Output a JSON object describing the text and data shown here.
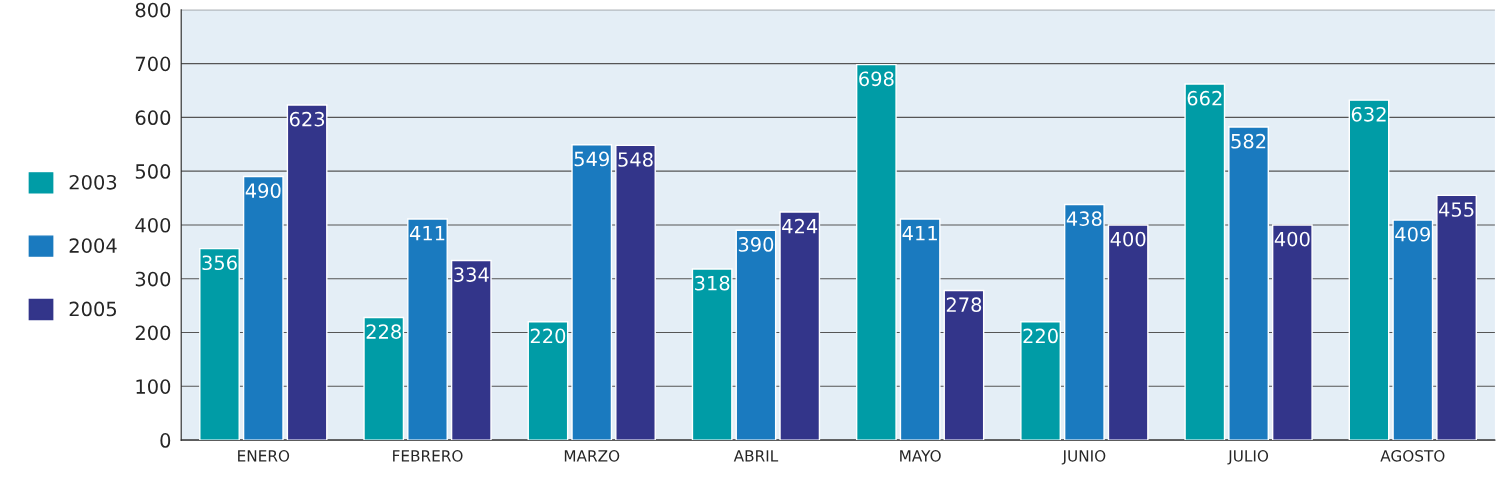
{
  "chart_data": {
    "type": "bar",
    "categories": [
      "ENERO",
      "FEBRERO",
      "MARZO",
      "ABRIL",
      "MAYO",
      "JUNIO",
      "JULIO",
      "AGOSTO"
    ],
    "series": [
      {
        "name": "2003",
        "color": "#009ca6",
        "values": [
          356,
          228,
          220,
          318,
          698,
          220,
          662,
          632
        ]
      },
      {
        "name": "2004",
        "color": "#1a7abf",
        "values": [
          490,
          411,
          549,
          390,
          411,
          438,
          582,
          409
        ]
      },
      {
        "name": "2005",
        "color": "#33358a",
        "values": [
          623,
          334,
          548,
          424,
          278,
          400,
          400,
          455
        ]
      }
    ],
    "ylim": [
      0,
      800
    ],
    "yticks": [
      0,
      100,
      200,
      300,
      400,
      500,
      600,
      700,
      800
    ],
    "grid": "y",
    "legend": "left",
    "data_labels": true
  }
}
